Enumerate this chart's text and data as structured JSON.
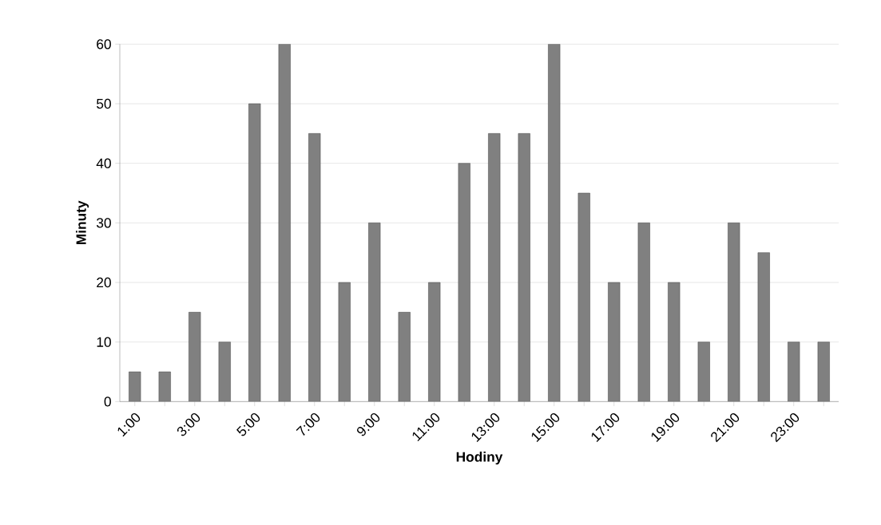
{
  "chart_data": {
    "type": "bar",
    "xlabel": "Hodiny",
    "ylabel": "Minuty",
    "categories": [
      "1:00",
      null,
      "3:00",
      null,
      "5:00",
      null,
      "7:00",
      null,
      "9:00",
      null,
      "11:00",
      null,
      "13:00",
      null,
      "15:00",
      null,
      "17:00",
      null,
      "19:00",
      null,
      "21:00",
      null,
      "23:00",
      null
    ],
    "values": [
      5,
      5,
      15,
      10,
      50,
      60,
      45,
      20,
      30,
      15,
      20,
      40,
      45,
      45,
      60,
      35,
      20,
      30,
      20,
      10,
      30,
      25,
      10,
      10
    ],
    "color": "#808080",
    "ylim": [
      0,
      60
    ],
    "yticks": [
      0,
      10,
      20,
      30,
      40,
      50,
      60
    ],
    "grid": "y"
  }
}
